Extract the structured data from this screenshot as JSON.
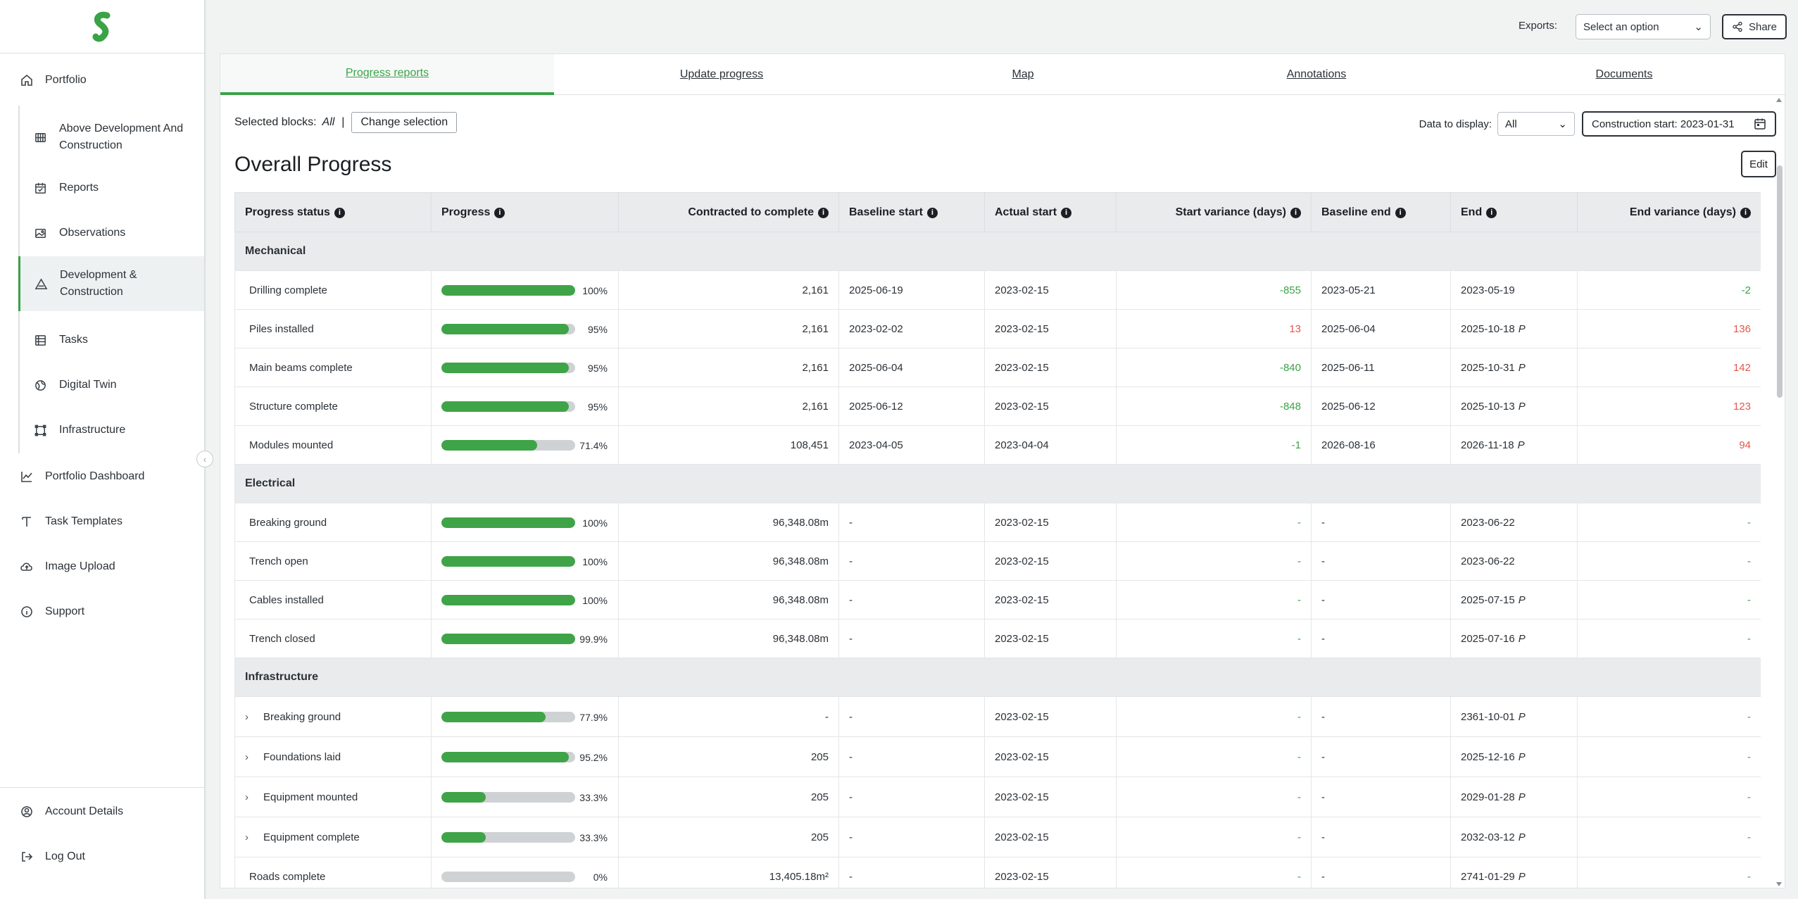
{
  "sidebar": {
    "top_items": [
      {
        "label": "Portfolio",
        "icon": "home-icon"
      }
    ],
    "sub_items": [
      {
        "label": "Above Development And Construction",
        "icon": "grid-globe-icon"
      },
      {
        "label": "Reports",
        "icon": "calendar-check-icon"
      },
      {
        "label": "Observations",
        "icon": "image-icon"
      },
      {
        "label": "Development & Construction",
        "icon": "triangle-icon",
        "active": true
      },
      {
        "label": "Tasks",
        "icon": "list-icon"
      },
      {
        "label": "Digital Twin",
        "icon": "globe-icon"
      },
      {
        "label": "Infrastructure",
        "icon": "vector-square-icon"
      }
    ],
    "lower_items": [
      {
        "label": "Portfolio Dashboard",
        "icon": "chart-line-icon"
      },
      {
        "label": "Task Templates",
        "icon": "template-icon"
      },
      {
        "label": "Image Upload",
        "icon": "cloud-upload-icon"
      },
      {
        "label": "Support",
        "icon": "info-icon"
      }
    ],
    "bottom_items": [
      {
        "label": "Account Details",
        "icon": "user-circle-icon"
      },
      {
        "label": "Log Out",
        "icon": "logout-icon"
      }
    ]
  },
  "topbar": {
    "exports_label": "Exports:",
    "exports_placeholder": "Select an option",
    "share_label": "Share"
  },
  "tabs": [
    "Progress reports",
    "Update progress",
    "Map",
    "Annotations",
    "Documents"
  ],
  "filters": {
    "selected_blocks_label": "Selected blocks:",
    "selected_blocks_value": "All",
    "separator": "|",
    "change_selection": "Change selection",
    "data_to_display_label": "Data to display:",
    "data_to_display_value": "All",
    "construction_start": "Construction start: 2023-01-31"
  },
  "page": {
    "title": "Overall Progress",
    "edit_label": "Edit"
  },
  "table": {
    "headers": [
      "Progress status",
      "Progress",
      "Contracted to complete",
      "Baseline start",
      "Actual start",
      "Start variance (days)",
      "Baseline end",
      "End",
      "End variance (days)"
    ],
    "sections": [
      {
        "name": "Mechanical",
        "rows": [
          {
            "status": "Drilling complete",
            "progress": 100,
            "progress_label": "100%",
            "contracted": "2,161",
            "baseline_start": "2025-06-19",
            "actual_start": "2023-02-15",
            "start_var": "-855",
            "start_var_type": "neg",
            "baseline_end": "2023-05-21",
            "end": "2023-05-19",
            "end_p": false,
            "end_var": "-2",
            "end_var_type": "neg"
          },
          {
            "status": "Piles installed",
            "progress": 95,
            "progress_label": "95%",
            "contracted": "2,161",
            "baseline_start": "2023-02-02",
            "actual_start": "2023-02-15",
            "start_var": "13",
            "start_var_type": "pos",
            "baseline_end": "2025-06-04",
            "end": "2025-10-18",
            "end_p": true,
            "end_var": "136",
            "end_var_type": "pos"
          },
          {
            "status": "Main beams complete",
            "progress": 95,
            "progress_label": "95%",
            "contracted": "2,161",
            "baseline_start": "2025-06-04",
            "actual_start": "2023-02-15",
            "start_var": "-840",
            "start_var_type": "neg",
            "baseline_end": "2025-06-11",
            "end": "2025-10-31",
            "end_p": true,
            "end_var": "142",
            "end_var_type": "pos"
          },
          {
            "status": "Structure complete",
            "progress": 95,
            "progress_label": "95%",
            "contracted": "2,161",
            "baseline_start": "2025-06-12",
            "actual_start": "2023-02-15",
            "start_var": "-848",
            "start_var_type": "neg",
            "baseline_end": "2025-06-12",
            "end": "2025-10-13",
            "end_p": true,
            "end_var": "123",
            "end_var_type": "pos"
          },
          {
            "status": "Modules mounted",
            "progress": 71.4,
            "progress_label": "71.4%",
            "contracted": "108,451",
            "baseline_start": "2023-04-05",
            "actual_start": "2023-04-04",
            "start_var": "-1",
            "start_var_type": "neg",
            "baseline_end": "2026-08-16",
            "end": "2026-11-18",
            "end_p": true,
            "end_var": "94",
            "end_var_type": "pos"
          }
        ]
      },
      {
        "name": "Electrical",
        "rows": [
          {
            "status": "Breaking ground",
            "progress": 100,
            "progress_label": "100%",
            "contracted": "96,348.08m",
            "baseline_start": "-",
            "actual_start": "2023-02-15",
            "start_var": "-",
            "start_var_type": "dash",
            "baseline_end": "-",
            "end": "2023-06-22",
            "end_p": false,
            "end_var": "-",
            "end_var_type": "dash"
          },
          {
            "status": "Trench open",
            "progress": 100,
            "progress_label": "100%",
            "contracted": "96,348.08m",
            "baseline_start": "-",
            "actual_start": "2023-02-15",
            "start_var": "-",
            "start_var_type": "dash",
            "baseline_end": "-",
            "end": "2023-06-22",
            "end_p": false,
            "end_var": "-",
            "end_var_type": "dash"
          },
          {
            "status": "Cables installed",
            "progress": 100,
            "progress_label": "100%",
            "contracted": "96,348.08m",
            "baseline_start": "-",
            "actual_start": "2023-02-15",
            "start_var": "-",
            "start_var_type": "dash",
            "baseline_end": "-",
            "end": "2025-07-15",
            "end_p": true,
            "end_var": "-",
            "end_var_type": "dash"
          },
          {
            "status": "Trench closed",
            "progress": 99.9,
            "progress_label": "99.9%",
            "contracted": "96,348.08m",
            "baseline_start": "-",
            "actual_start": "2023-02-15",
            "start_var": "-",
            "start_var_type": "dash",
            "baseline_end": "-",
            "end": "2025-07-16",
            "end_p": true,
            "end_var": "-",
            "end_var_type": "dash"
          }
        ]
      },
      {
        "name": "Infrastructure",
        "rows": [
          {
            "status": "Breaking ground",
            "expandable": true,
            "progress": 77.9,
            "progress_label": "77.9%",
            "contracted": "-",
            "baseline_start": "-",
            "actual_start": "2023-02-15",
            "start_var": "-",
            "start_var_type": "dash",
            "baseline_end": "-",
            "end": "2361-10-01",
            "end_p": true,
            "end_var": "-",
            "end_var_type": "dash"
          },
          {
            "status": "Foundations laid",
            "expandable": true,
            "progress": 95.2,
            "progress_label": "95.2%",
            "contracted": "205",
            "baseline_start": "-",
            "actual_start": "2023-02-15",
            "start_var": "-",
            "start_var_type": "dash",
            "baseline_end": "-",
            "end": "2025-12-16",
            "end_p": true,
            "end_var": "-",
            "end_var_type": "dash"
          },
          {
            "status": "Equipment mounted",
            "expandable": true,
            "progress": 33.3,
            "progress_label": "33.3%",
            "contracted": "205",
            "baseline_start": "-",
            "actual_start": "2023-02-15",
            "start_var": "-",
            "start_var_type": "dash",
            "baseline_end": "-",
            "end": "2029-01-28",
            "end_p": true,
            "end_var": "-",
            "end_var_type": "dash"
          },
          {
            "status": "Equipment complete",
            "expandable": true,
            "progress": 33.3,
            "progress_label": "33.3%",
            "contracted": "205",
            "baseline_start": "-",
            "actual_start": "2023-02-15",
            "start_var": "-",
            "start_var_type": "dash",
            "baseline_end": "-",
            "end": "2032-03-12",
            "end_p": true,
            "end_var": "-",
            "end_var_type": "dash"
          },
          {
            "status": "Roads complete",
            "progress": 0,
            "progress_label": "0%",
            "contracted": "13,405.18m²",
            "baseline_start": "-",
            "actual_start": "2023-02-15",
            "start_var": "-",
            "start_var_type": "dash",
            "baseline_end": "-",
            "end": "2741-01-29",
            "end_p": true,
            "end_var": "-",
            "end_var_type": "dash"
          }
        ]
      }
    ],
    "projected_marker": "P",
    "info_glyph": "i"
  },
  "colors": {
    "accent": "#3aa346",
    "negative_variance": "#3aa346",
    "positive_variance": "#e2574c",
    "progress_fill": "#3fa447",
    "progress_track": "#cfd2d4"
  }
}
